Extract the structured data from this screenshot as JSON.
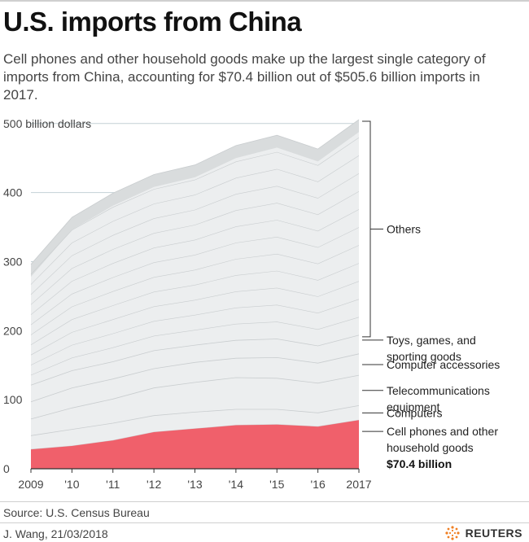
{
  "header": {
    "title": "U.S. imports from China",
    "subtitle": "Cell phones and other household goods make up the largest single category of imports from China, accounting for $70.4 billion out of  $505.6 billion imports in 2017."
  },
  "footer": {
    "source": "Source: U.S. Census Bureau",
    "credit": "J. Wang, 21/03/2018",
    "logo_text": "REUTERS"
  },
  "colors": {
    "highlight": "#f0606b",
    "fill": "#eceeef",
    "fill_top": "#d9dcdd",
    "line": "#c9cdcf",
    "grid": "#c3d1d6",
    "axis": "#333333"
  },
  "chart_data": {
    "type": "area",
    "x": [
      "2009",
      "'10",
      "'11",
      "'12",
      "'13",
      "'14",
      "'15",
      "'16",
      "2017"
    ],
    "ylim": [
      0,
      505.6
    ],
    "ylabel": "",
    "yticks": [
      {
        "value": 0,
        "label": "0"
      },
      {
        "value": 100,
        "label": "100"
      },
      {
        "value": 200,
        "label": "200"
      },
      {
        "value": 300,
        "label": "300"
      },
      {
        "value": 400,
        "label": "400"
      },
      {
        "value": 500,
        "label": "500 billion dollars"
      }
    ],
    "total": [
      296,
      364,
      399,
      426,
      440,
      468,
      483,
      463,
      505.6
    ],
    "series": [
      {
        "name": "Cell phones and other household goods",
        "values": [
          28,
          33,
          41,
          53,
          58,
          63,
          64,
          61,
          70.4
        ],
        "highlight": true
      },
      {
        "name": "Computers",
        "values": [
          20,
          24,
          25,
          24,
          24,
          23,
          22,
          20,
          21
        ]
      },
      {
        "name": "Telecommunications equipment",
        "values": [
          24,
          31,
          35,
          40,
          43,
          46,
          45,
          43,
          44
        ]
      },
      {
        "name": "Computer accessories",
        "values": [
          25,
          29,
          29,
          28,
          29,
          28,
          30,
          29,
          31
        ]
      },
      {
        "name": "Toys, games, and sporting goods",
        "values": [
          24,
          25,
          25,
          26,
          25,
          26,
          27,
          25,
          27
        ]
      },
      {
        "name": "Others",
        "values": [
          175,
          222,
          244,
          255,
          261,
          282,
          295,
          285,
          312.2
        ]
      }
    ],
    "annotations": {
      "value_label": "$70.4 billion"
    }
  }
}
